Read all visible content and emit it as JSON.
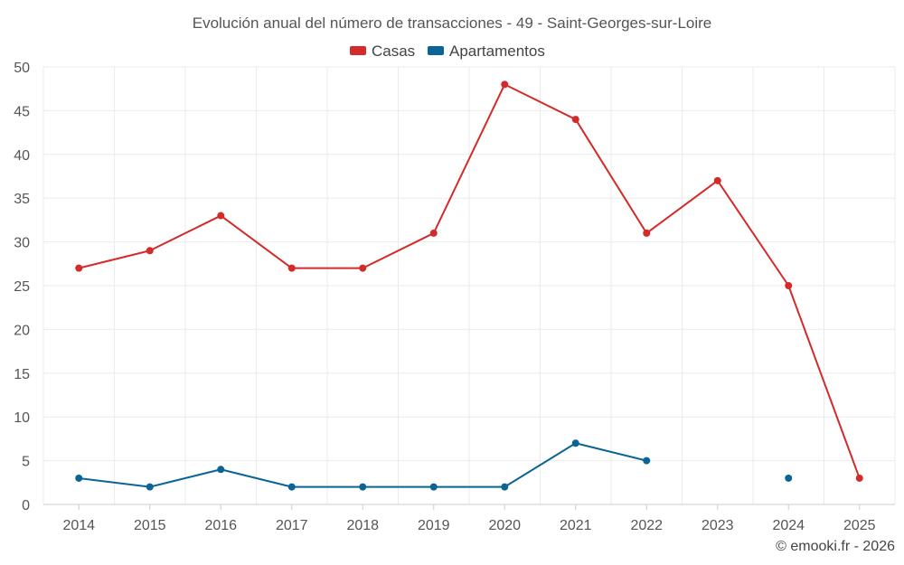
{
  "chart_data": {
    "type": "line",
    "title": "Evolución anual del número de transacciones - 49 - Saint-Georges-sur-Loire",
    "categories": [
      "2014",
      "2015",
      "2016",
      "2017",
      "2018",
      "2019",
      "2020",
      "2021",
      "2022",
      "2023",
      "2024",
      "2025"
    ],
    "ylim": [
      0,
      50
    ],
    "yticks": [
      "0",
      "5",
      "10",
      "15",
      "20",
      "25",
      "30",
      "35",
      "40",
      "45",
      "50"
    ],
    "grid": true,
    "legend_position": "top-center",
    "series": [
      {
        "name": "Casas",
        "color": "#d42a2a",
        "values": [
          27,
          29,
          33,
          27,
          27,
          31,
          48,
          44,
          31,
          37,
          25,
          3
        ]
      },
      {
        "name": "Apartamentos",
        "color": "#0a6496",
        "values": [
          3,
          2,
          4,
          2,
          2,
          2,
          2,
          7,
          5,
          null,
          3,
          null
        ]
      }
    ],
    "credit": "© emooki.fr - 2026"
  }
}
